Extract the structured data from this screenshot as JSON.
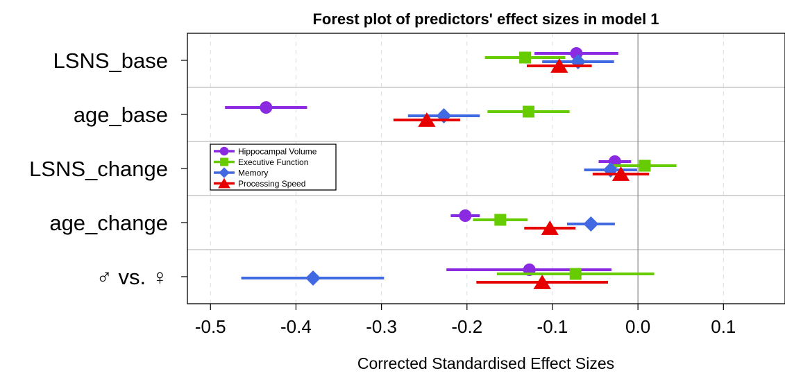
{
  "chart_data": {
    "type": "forest",
    "title": "Forest plot of predictors' effect sizes in model 1",
    "xlabel": "Corrected Standardised Effect Sizes",
    "xlim": [
      -0.527,
      0.172
    ],
    "xticks": [
      -0.5,
      -0.4,
      -0.3,
      -0.2,
      -0.1,
      0.0,
      0.1
    ],
    "xtick_labels": [
      "-0.5",
      "-0.4",
      "-0.3",
      "-0.2",
      "-0.1",
      "0.0",
      "0.1"
    ],
    "categories": [
      "LSNS_base",
      "age_base",
      "LSNS_change",
      "age_change",
      "♂ vs. ♀"
    ],
    "grid": "vertical dashed",
    "reference_line": 0.0,
    "legend_position": "left-middle",
    "series": [
      {
        "name": "Hippocampal Volume",
        "color": "#8a2be2",
        "marker": "circle",
        "points": [
          {
            "est": -0.072,
            "lo": -0.121,
            "hi": -0.023
          },
          {
            "est": -0.435,
            "lo": -0.483,
            "hi": -0.387
          },
          {
            "est": -0.027,
            "lo": -0.046,
            "hi": -0.008
          },
          {
            "est": -0.202,
            "lo": -0.219,
            "hi": -0.185
          },
          {
            "est": -0.127,
            "lo": -0.224,
            "hi": -0.031
          }
        ]
      },
      {
        "name": "Executive Function",
        "color": "#66cc00",
        "marker": "square",
        "points": [
          {
            "est": -0.132,
            "lo": -0.179,
            "hi": -0.085
          },
          {
            "est": -0.128,
            "lo": -0.176,
            "hi": -0.08
          },
          {
            "est": 0.008,
            "lo": -0.029,
            "hi": 0.045
          },
          {
            "est": -0.161,
            "lo": -0.193,
            "hi": -0.129
          },
          {
            "est": -0.073,
            "lo": -0.165,
            "hi": 0.019
          }
        ]
      },
      {
        "name": "Memory",
        "color": "#4169e1",
        "marker": "diamond",
        "points": [
          {
            "est": -0.07,
            "lo": -0.112,
            "hi": -0.028
          },
          {
            "est": -0.227,
            "lo": -0.269,
            "hi": -0.185
          },
          {
            "est": -0.032,
            "lo": -0.063,
            "hi": -0.001
          },
          {
            "est": -0.055,
            "lo": -0.083,
            "hi": -0.027
          },
          {
            "est": -0.38,
            "lo": -0.464,
            "hi": -0.297
          }
        ]
      },
      {
        "name": "Processing Speed",
        "color": "#e60000",
        "marker": "triangle",
        "points": [
          {
            "est": -0.092,
            "lo": -0.13,
            "hi": -0.054
          },
          {
            "est": -0.247,
            "lo": -0.286,
            "hi": -0.208
          },
          {
            "est": -0.02,
            "lo": -0.053,
            "hi": 0.013
          },
          {
            "est": -0.103,
            "lo": -0.133,
            "hi": -0.073
          },
          {
            "est": -0.112,
            "lo": -0.189,
            "hi": -0.035
          }
        ]
      }
    ]
  }
}
